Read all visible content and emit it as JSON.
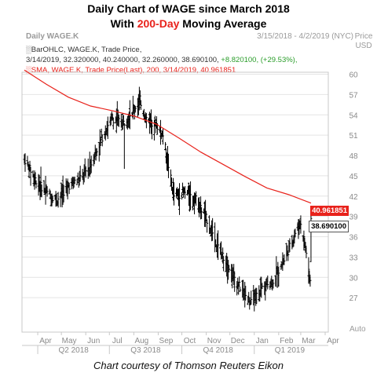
{
  "title": {
    "line1": "Daily Chart of WAGE since March 2018",
    "line2_prefix": "With ",
    "line2_highlight": "200-Day",
    "line2_suffix": " Moving Average"
  },
  "header": {
    "chart_name": "Daily WAGE.K",
    "date_range": "3/15/2018 - 4/2/2019 (NYC)",
    "unit_line1": "Price",
    "unit_line2": "USD"
  },
  "legend": {
    "bar_label": "BarOHLC, WAGE.K, Trade Price,",
    "bar_values": "3/14/2019, 32.320000, 40.240000, 32.260000, 38.690100, ",
    "bar_change": "+8.820100, (+29.53%),",
    "sma_label": "SMA, WAGE.K, Trade Price(Last),  200,  3/14/2019, 40.961851"
  },
  "tags": {
    "sma": "40.961851",
    "price": "38.690100"
  },
  "auto_label": "Auto",
  "credit": "Chart courtesy of Thomson Reuters Eikon",
  "colors": {
    "price_bars": "#000000",
    "sma_line": "#e8221b",
    "title_highlight": "#e8221b",
    "change_text": "#2a9d2a"
  },
  "chart_data": {
    "type": "line",
    "title": "Daily Chart of WAGE since March 2018",
    "subtitle": "With 200-Day Moving Average",
    "ylabel": "Price USD",
    "ylim": [
      24,
      63
    ],
    "yticks": [
      27,
      30,
      33,
      36,
      39,
      42,
      45,
      48,
      51,
      54,
      57,
      60
    ],
    "month_labels": [
      "Apr",
      "May",
      "Jun",
      "Jul",
      "Aug",
      "Sep",
      "Oct",
      "Nov",
      "Dec",
      "Jan",
      "Feb",
      "Mar",
      "Apr"
    ],
    "quarter_labels": [
      "Q2 2018",
      "Q3 2018",
      "Q4 2018",
      "Q1 2019"
    ],
    "series": [
      {
        "name": "BarOHLC, WAGE.K, Trade Price",
        "x": [
          "2018-03-15",
          "2018-03-29",
          "2018-04-12",
          "2018-04-26",
          "2018-05-10",
          "2018-05-24",
          "2018-06-07",
          "2018-06-21",
          "2018-07-05",
          "2018-07-19",
          "2018-08-02",
          "2018-08-09",
          "2018-08-16",
          "2018-08-30",
          "2018-09-07",
          "2018-09-21",
          "2018-10-05",
          "2018-10-19",
          "2018-11-02",
          "2018-11-16",
          "2018-11-30",
          "2018-12-14",
          "2018-12-28",
          "2019-01-11",
          "2019-01-25",
          "2019-02-08",
          "2019-02-22",
          "2019-03-01",
          "2019-03-07",
          "2019-03-13",
          "2019-03-14"
        ],
        "values": [
          47.5,
          44.5,
          42.5,
          41.5,
          43.5,
          44.5,
          46.5,
          50.5,
          53.5,
          52.8,
          55.0,
          56.2,
          53.5,
          52.5,
          51.0,
          42.0,
          42.5,
          41.5,
          38.5,
          34.5,
          31.5,
          28.5,
          26.2,
          28.5,
          29.5,
          32.5,
          36.5,
          38.0,
          34.5,
          29.5,
          38.69
        ]
      },
      {
        "name": "SMA, WAGE.K, Trade Price(Last), 200",
        "x": [
          "2018-03-15",
          "2018-04-12",
          "2018-05-10",
          "2018-06-07",
          "2018-07-05",
          "2018-08-02",
          "2018-08-30",
          "2018-09-27",
          "2018-10-25",
          "2018-11-22",
          "2018-12-20",
          "2019-01-17",
          "2019-02-14",
          "2019-03-14"
        ],
        "values": [
          60.6,
          58.5,
          56.6,
          55.3,
          54.6,
          53.8,
          52.6,
          50.6,
          48.5,
          46.7,
          44.9,
          43.2,
          42.2,
          40.96
        ]
      }
    ],
    "markers": [
      {
        "label": "40.961851",
        "y": 40.961851
      },
      {
        "label": "38.690100",
        "y": 38.6901
      }
    ]
  }
}
